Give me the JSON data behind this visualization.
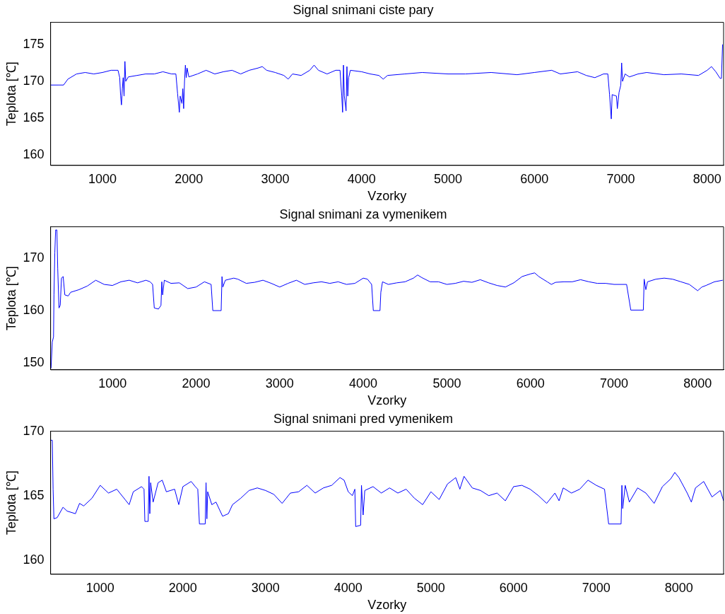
{
  "chart_data": [
    {
      "type": "line",
      "title": "Signal snimani ciste pary",
      "xlabel": "Vzorky",
      "ylabel": "Teplota [℃]",
      "xlim": [
        400,
        8190
      ],
      "xticks": [
        1000,
        2000,
        3000,
        4000,
        5000,
        6000,
        7000,
        8000
      ],
      "ylim": [
        158.6,
        178
      ],
      "yticks": [
        160,
        165,
        170,
        175
      ],
      "grid": false,
      "legend": false,
      "marker": "none",
      "line_style": "solid",
      "series": [
        {
          "color": "#0000ff",
          "x": [
            400,
            500,
            550,
            600,
            700,
            800,
            900,
            1000,
            1100,
            1180,
            1200,
            1210,
            1220,
            1230,
            1240,
            1250,
            1260,
            1270,
            1300,
            1400,
            1500,
            1600,
            1700,
            1800,
            1850,
            1870,
            1890,
            1900,
            1920,
            1930,
            1940,
            1950,
            1960,
            1970,
            1980,
            2000,
            2100,
            2200,
            2300,
            2400,
            2500,
            2600,
            2700,
            2800,
            2850,
            2900,
            3000,
            3100,
            3150,
            3200,
            3300,
            3400,
            3450,
            3500,
            3600,
            3700,
            3750,
            3770,
            3780,
            3790,
            3800,
            3820,
            3830,
            3840,
            3850,
            3870,
            4000,
            4100,
            4200,
            4250,
            4300,
            4500,
            4700,
            5000,
            5200,
            5500,
            5800,
            6000,
            6200,
            6300,
            6500,
            6600,
            6700,
            6800,
            6850,
            6870,
            6890,
            6900,
            6950,
            6960,
            6980,
            7000,
            7010,
            7020,
            7050,
            7100,
            7200,
            7300,
            7500,
            7700,
            7900,
            8000,
            8050,
            8100,
            8150,
            8165,
            8178
          ],
          "values": [
            169.5,
            169.5,
            169.5,
            170.3,
            171,
            171.2,
            171,
            171.2,
            171.5,
            171.5,
            170.5,
            168,
            166.8,
            169,
            170.5,
            168,
            172.7,
            170,
            170.6,
            170.8,
            171,
            171,
            171.3,
            171,
            171,
            168.3,
            165.8,
            168,
            167,
            169,
            166.3,
            170,
            172.2,
            170.5,
            171.8,
            170.6,
            171,
            171.5,
            171,
            171.3,
            171.5,
            171,
            171.5,
            171.8,
            172,
            171.5,
            171.2,
            170.8,
            170.3,
            171,
            170.8,
            171.5,
            172.2,
            171.5,
            171,
            171.5,
            171.5,
            168,
            165.8,
            172.2,
            168,
            166,
            172,
            168,
            170.5,
            171.5,
            171.3,
            171,
            170.8,
            170.3,
            170.8,
            171,
            171.2,
            171,
            171,
            171.2,
            170.9,
            171.2,
            171.5,
            171,
            171.3,
            170.8,
            170.5,
            171,
            171,
            168.2,
            164.9,
            168.2,
            168,
            166.3,
            168.5,
            169.5,
            172.5,
            170,
            171,
            170.6,
            171,
            171.2,
            170.9,
            171,
            170.8,
            171.5,
            172,
            171.3,
            170.4,
            170.4,
            175
          ]
        }
      ]
    },
    {
      "type": "line",
      "title": "Signal snimani za vymenikem",
      "xlabel": "Vzorky",
      "ylabel": "Teplota [℃]",
      "xlim": [
        260,
        8310
      ],
      "xticks": [
        1000,
        2000,
        3000,
        4000,
        5000,
        6000,
        7000,
        8000
      ],
      "ylim": [
        148.7,
        176
      ],
      "yticks": [
        150,
        160,
        170
      ],
      "grid": false,
      "legend": false,
      "marker": "none",
      "line_style": "solid",
      "series": [
        {
          "color": "#0000ff",
          "x": [
            265,
            280,
            295,
            300,
            310,
            320,
            335,
            345,
            360,
            375,
            390,
            410,
            430,
            470,
            500,
            600,
            700,
            800,
            900,
            1000,
            1100,
            1200,
            1300,
            1400,
            1450,
            1480,
            1500,
            1550,
            1580,
            1590,
            1600,
            1620,
            1700,
            1800,
            1900,
            2000,
            2100,
            2180,
            2200,
            2300,
            2310,
            2320,
            2350,
            2450,
            2500,
            2600,
            2700,
            2800,
            2900,
            3000,
            3100,
            3200,
            3300,
            3400,
            3500,
            3600,
            3700,
            3800,
            3900,
            4000,
            4050,
            4100,
            4120,
            4200,
            4210,
            4230,
            4300,
            4400,
            4500,
            4600,
            4650,
            4700,
            4800,
            4900,
            5000,
            5100,
            5200,
            5300,
            5400,
            5500,
            5600,
            5700,
            5800,
            5900,
            6000,
            6050,
            6100,
            6200,
            6250,
            6300,
            6400,
            6500,
            6600,
            6700,
            6800,
            6900,
            7000,
            7150,
            7200,
            7350,
            7360,
            7380,
            7400,
            7500,
            7600,
            7700,
            7800,
            7900,
            8000,
            8050,
            8100,
            8200,
            8300
          ],
          "values": [
            149,
            154,
            155,
            163,
            171,
            175.4,
            175.4,
            168,
            160.5,
            161,
            166.2,
            166.5,
            163,
            162.8,
            163.5,
            164,
            164.7,
            165.8,
            165,
            164.8,
            165.5,
            165.8,
            165.3,
            165.8,
            165.5,
            165,
            160.5,
            160.3,
            161,
            165.5,
            163,
            165.8,
            165.2,
            165.3,
            164.2,
            164.5,
            165.5,
            165,
            160,
            160,
            166.5,
            164.5,
            165.8,
            166.2,
            166,
            165.2,
            165.4,
            165.8,
            165.2,
            164.5,
            165.2,
            165.8,
            165,
            165.3,
            165.5,
            165.2,
            165.5,
            165,
            165.2,
            166.2,
            166,
            165,
            160,
            160,
            163.5,
            165.5,
            165,
            165.3,
            165.5,
            166.2,
            166.8,
            166.3,
            165.5,
            165.5,
            165,
            165.2,
            165.6,
            165.4,
            165.9,
            165.3,
            164.8,
            164.5,
            165.3,
            166.5,
            167,
            167.2,
            166.5,
            165.5,
            165,
            165.4,
            165.5,
            165.5,
            165.9,
            165.5,
            165.2,
            165.2,
            165,
            165,
            160.1,
            160.1,
            166,
            164,
            165.5,
            166,
            166.2,
            166,
            165.5,
            165,
            163.8,
            164.5,
            164.8,
            165.5,
            165.8
          ]
        }
      ]
    },
    {
      "type": "line",
      "title": "Signal snimani pred vymenikem",
      "xlabel": "Vzorky",
      "ylabel": "Teplota [℃]",
      "xlim": [
        400,
        8540
      ],
      "xticks": [
        1000,
        2000,
        3000,
        4000,
        5000,
        6000,
        7000,
        8000
      ],
      "ylim": [
        158.9,
        170
      ],
      "yticks": [
        160,
        165,
        170
      ],
      "grid": false,
      "legend": false,
      "marker": "none",
      "line_style": "solid",
      "series": [
        {
          "color": "#0000ff",
          "x": [
            400,
            420,
            430,
            440,
            480,
            550,
            600,
            700,
            750,
            800,
            900,
            1000,
            1100,
            1200,
            1300,
            1350,
            1400,
            1500,
            1530,
            1540,
            1580,
            1590,
            1600,
            1610,
            1640,
            1700,
            1750,
            1800,
            1900,
            1950,
            2000,
            2100,
            2150,
            2180,
            2200,
            2270,
            2280,
            2290,
            2300,
            2350,
            2400,
            2480,
            2550,
            2600,
            2700,
            2800,
            2900,
            3000,
            3100,
            3200,
            3300,
            3400,
            3500,
            3600,
            3700,
            3800,
            3900,
            3950,
            4000,
            4050,
            4080,
            4090,
            4150,
            4160,
            4180,
            4200,
            4300,
            4400,
            4500,
            4600,
            4700,
            4800,
            4900,
            5000,
            5100,
            5200,
            5300,
            5350,
            5400,
            5500,
            5600,
            5700,
            5800,
            5900,
            6000,
            6100,
            6200,
            6300,
            6400,
            6500,
            6550,
            6600,
            6700,
            6800,
            6900,
            7000,
            7100,
            7150,
            7300,
            7310,
            7320,
            7350,
            7400,
            7500,
            7600,
            7700,
            7800,
            7900,
            7950,
            8000,
            8100,
            8150,
            8200,
            8300,
            8400,
            8500,
            8540
          ],
          "values": [
            169.3,
            169.3,
            165.5,
            163.2,
            163.3,
            164.1,
            163.8,
            163.6,
            164.4,
            164.2,
            164.8,
            165.8,
            165.2,
            165.5,
            164.7,
            164.3,
            165.3,
            165.7,
            165.5,
            163,
            163,
            166.5,
            163.6,
            166,
            164.5,
            166,
            166.2,
            165.3,
            165.5,
            164.3,
            165.7,
            166.1,
            165.7,
            165.5,
            162.8,
            162.8,
            166,
            163.2,
            165.3,
            164.3,
            164.5,
            163.4,
            163.6,
            164.3,
            164.8,
            165.4,
            165.6,
            165.4,
            165.1,
            164.4,
            165.2,
            165.3,
            165.8,
            165.2,
            165.6,
            165.8,
            166.4,
            166.2,
            165.3,
            165,
            165.5,
            162.6,
            162.7,
            165.8,
            163.5,
            165.4,
            165.7,
            165.2,
            165.6,
            165.2,
            165.5,
            164.8,
            164.3,
            165.3,
            164.7,
            165.9,
            166.4,
            165.5,
            166.5,
            165.6,
            165.4,
            165,
            165.2,
            164.6,
            165.7,
            165.8,
            165.5,
            165,
            164.4,
            165.2,
            164.6,
            165.6,
            165.2,
            165.5,
            166.2,
            165.8,
            165.5,
            162.8,
            162.8,
            165.8,
            164,
            165.8,
            164.5,
            165.6,
            165.2,
            164.4,
            165.7,
            166.3,
            166.8,
            166.4,
            165.2,
            164.5,
            165.6,
            166.1,
            164.9,
            165.4,
            164.6
          ]
        }
      ]
    }
  ]
}
